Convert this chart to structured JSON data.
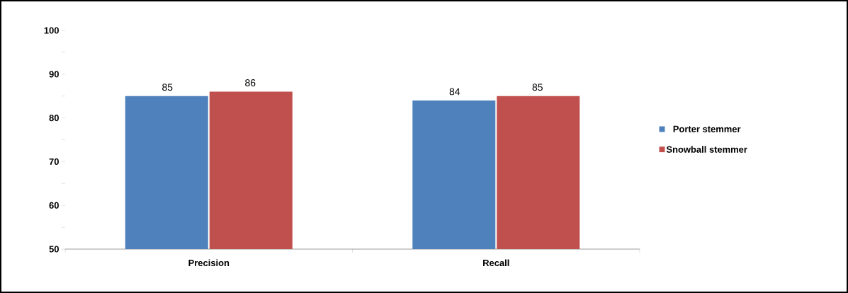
{
  "chart_data": {
    "type": "bar",
    "categories": [
      "Precision",
      "Recall"
    ],
    "series": [
      {
        "name": "Porter stemmer",
        "color": "#4f81bd",
        "values": [
          85,
          84
        ]
      },
      {
        "name": "Snowball stemmer",
        "color": "#c0504d",
        "values": [
          86,
          85
        ]
      }
    ],
    "ylim": [
      50,
      100
    ],
    "yticks": [
      50,
      {
        "value": 55,
        "label": null
      },
      60,
      {
        "value": 65,
        "label": null
      },
      70,
      {
        "value": 75,
        "label": null
      },
      80,
      {
        "value": 85,
        "label": null
      },
      90,
      {
        "value": 95,
        "label": null
      },
      100
    ],
    "data_labels": true,
    "legend": "right",
    "grid": false
  }
}
